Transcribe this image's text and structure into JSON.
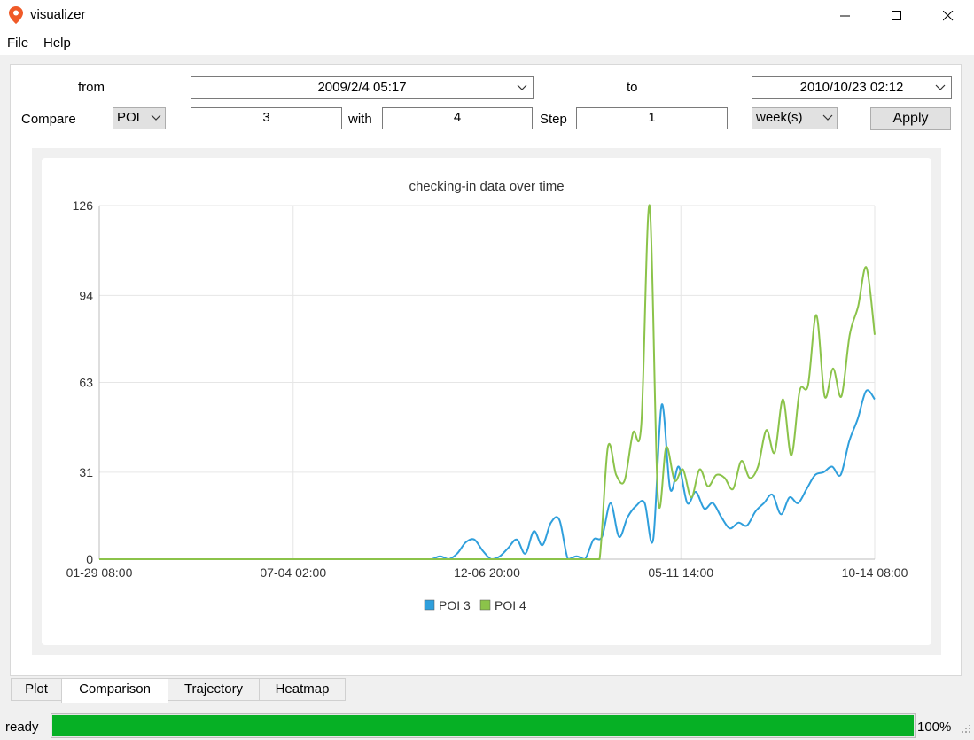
{
  "window": {
    "title": "visualizer",
    "icon": "map-pin-icon",
    "accent": "#f05a28"
  },
  "menu": [
    "File",
    "Help"
  ],
  "controls": {
    "from_label": "from",
    "from_value": "2009/2/4 05:17",
    "to_label": "to",
    "to_value": "2010/10/23 02:12",
    "compare_label": "Compare",
    "compare_type": "POI",
    "first_id": "3",
    "with_label": "with",
    "second_id": "4",
    "step_label": "Step",
    "step_value": "1",
    "step_unit": "week(s)",
    "apply_label": "Apply"
  },
  "chart_data": {
    "type": "line",
    "title": "checking-in data over time",
    "xlabel": "",
    "ylabel": "",
    "x_ticks": [
      "01-29 08:00",
      "07-04 02:00",
      "12-06 20:00",
      "05-11 14:00",
      "10-14 08:00"
    ],
    "y_ticks": [
      "0",
      "31",
      "63",
      "94",
      "126"
    ],
    "ylim": [
      0,
      126
    ],
    "grid": true,
    "legend_position": "bottom",
    "series": [
      {
        "name": "POI 3",
        "color": "#2f9fdc",
        "values": [
          0,
          0,
          0,
          0,
          0,
          0,
          0,
          0,
          0,
          0,
          0,
          0,
          0,
          0,
          0,
          0,
          0,
          0,
          0,
          0,
          0,
          0,
          0,
          0,
          0,
          0,
          0,
          0,
          0,
          0,
          0,
          0,
          0,
          0,
          0,
          0,
          0,
          0,
          0,
          0,
          1,
          0,
          2,
          6,
          7,
          3,
          0,
          1,
          4,
          7,
          2,
          10,
          5,
          13,
          14,
          0,
          1,
          0,
          7,
          8,
          20,
          8,
          15,
          19,
          20,
          7,
          55,
          25,
          33,
          20,
          24,
          18,
          20,
          15,
          11,
          13,
          12,
          17,
          20,
          23,
          16,
          22,
          20,
          25,
          30,
          31,
          33,
          30,
          42,
          50,
          60,
          57
        ]
      },
      {
        "name": "POI 4",
        "color": "#8bc34a",
        "values": [
          0,
          0,
          0,
          0,
          0,
          0,
          0,
          0,
          0,
          0,
          0,
          0,
          0,
          0,
          0,
          0,
          0,
          0,
          0,
          0,
          0,
          0,
          0,
          0,
          0,
          0,
          0,
          0,
          0,
          0,
          0,
          0,
          0,
          0,
          0,
          0,
          0,
          0,
          0,
          0,
          0,
          0,
          0,
          0,
          0,
          0,
          0,
          0,
          0,
          0,
          0,
          0,
          0,
          0,
          0,
          0,
          0,
          0,
          0,
          0,
          0,
          40,
          30,
          28,
          45,
          48,
          126,
          22,
          40,
          28,
          32,
          22,
          32,
          26,
          30,
          29,
          25,
          35,
          29,
          33,
          46,
          38,
          57,
          37,
          60,
          62,
          87,
          58,
          68,
          58,
          80,
          90,
          104,
          80
        ]
      }
    ]
  },
  "tabs": [
    {
      "label": "Plot",
      "active": false
    },
    {
      "label": "Comparison",
      "active": true
    },
    {
      "label": "Trajectory",
      "active": false
    },
    {
      "label": "Heatmap",
      "active": false
    }
  ],
  "status": {
    "text": "ready",
    "progress": 100,
    "progress_label": "100%",
    "bar_color": "#06b025"
  }
}
